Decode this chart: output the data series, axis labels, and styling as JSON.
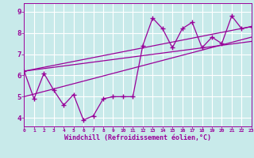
{
  "title": "",
  "xlabel": "Windchill (Refroidissement éolien,°C)",
  "bg_color": "#c8eaea",
  "line_color": "#990099",
  "grid_color": "#ffffff",
  "xlim": [
    0,
    23
  ],
  "ylim": [
    3.6,
    9.4
  ],
  "yticks": [
    4,
    5,
    6,
    7,
    8,
    9
  ],
  "xticks": [
    0,
    1,
    2,
    3,
    4,
    5,
    6,
    7,
    8,
    9,
    10,
    11,
    12,
    13,
    14,
    15,
    16,
    17,
    18,
    19,
    20,
    21,
    22,
    23
  ],
  "data_x": [
    0,
    1,
    2,
    3,
    4,
    5,
    6,
    7,
    8,
    9,
    10,
    11,
    12,
    13,
    14,
    15,
    16,
    17,
    18,
    19,
    20,
    21,
    22,
    23
  ],
  "data_y": [
    6.2,
    4.9,
    6.1,
    5.3,
    4.6,
    5.1,
    3.9,
    4.1,
    4.9,
    5.0,
    5.0,
    5.0,
    7.4,
    8.7,
    8.2,
    7.3,
    8.2,
    8.5,
    7.3,
    7.8,
    7.5,
    8.8,
    8.2,
    8.3
  ],
  "trend1_x": [
    0,
    23
  ],
  "trend1_y": [
    6.2,
    8.3
  ],
  "trend2_x": [
    0,
    23
  ],
  "trend2_y": [
    6.2,
    7.6
  ],
  "trend3_x": [
    0,
    23
  ],
  "trend3_y": [
    5.0,
    7.8
  ]
}
